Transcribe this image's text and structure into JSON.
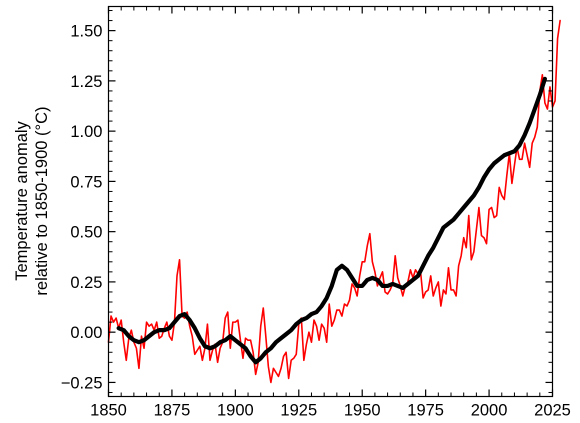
{
  "chart_data": {
    "type": "line",
    "title": "",
    "xlabel": "",
    "ylabel_line1": "Temperature anomaly",
    "ylabel_line2": "relative to 1850-1900 (°C)",
    "xlim": [
      1850,
      2025
    ],
    "ylim": [
      -0.32,
      1.62
    ],
    "x_ticks": [
      1850,
      1875,
      1900,
      1925,
      1950,
      1975,
      2000,
      2025
    ],
    "x_tick_labels": [
      "1850",
      "1875",
      "1900",
      "1925",
      "1950",
      "1975",
      "2000",
      "2025"
    ],
    "y_ticks": [
      -0.25,
      0,
      0.25,
      0.5,
      0.75,
      1.0,
      1.25,
      1.5
    ],
    "y_tick_labels": [
      "−0.25",
      "0.00",
      "0.25",
      "0.50",
      "0.75",
      "1.00",
      "1.25",
      "1.50"
    ],
    "grid": false,
    "legend": "none",
    "series": [
      {
        "kind": "annual",
        "color": "#ff0000",
        "x_start": 1850,
        "x_step": 1,
        "values": [
          -0.05,
          0.08,
          0.05,
          0.07,
          0.02,
          0.06,
          -0.05,
          -0.14,
          -0.03,
          0.01,
          -0.05,
          -0.08,
          -0.18,
          -0.02,
          -0.08,
          0.05,
          0.03,
          0.04,
          0.01,
          0.05,
          -0.03,
          -0.02,
          0.02,
          0.05,
          -0.02,
          -0.04,
          0.05,
          0.28,
          0.36,
          0.08,
          0.07,
          0.1,
          0.03,
          -0.02,
          -0.11,
          -0.09,
          -0.07,
          -0.14,
          -0.08,
          0.04,
          -0.14,
          -0.09,
          -0.06,
          -0.15,
          -0.08,
          -0.05,
          0.07,
          0.1,
          -0.08,
          0.05,
          0.05,
          0.06,
          -0.04,
          -0.13,
          -0.03,
          -0.04,
          -0.04,
          -0.1,
          -0.21,
          -0.15,
          0.03,
          0.12,
          -0.02,
          -0.17,
          -0.25,
          -0.18,
          -0.2,
          -0.22,
          -0.18,
          -0.12,
          -0.1,
          -0.23,
          -0.14,
          -0.13,
          -0.11,
          0.04,
          0.07,
          -0.14,
          -0.06,
          0.0,
          -0.05,
          0.06,
          0.03,
          -0.04,
          0.04,
          0.02,
          -0.05,
          0.14,
          0.03,
          0.06,
          0.11,
          0.11,
          0.08,
          0.14,
          0.13,
          0.16,
          0.24,
          0.22,
          0.18,
          0.28,
          0.35,
          0.35,
          0.43,
          0.49,
          0.35,
          0.3,
          0.23,
          0.27,
          0.3,
          0.2,
          0.19,
          0.21,
          0.24,
          0.38,
          0.27,
          0.23,
          0.18,
          0.23,
          0.25,
          0.31,
          0.27,
          0.31,
          0.29,
          0.3,
          0.17,
          0.2,
          0.21,
          0.28,
          0.18,
          0.22,
          0.25,
          0.13,
          0.21,
          0.19,
          0.32,
          0.21,
          0.21,
          0.18,
          0.33,
          0.38,
          0.47,
          0.42,
          0.58,
          0.36,
          0.4,
          0.51,
          0.62,
          0.48,
          0.47,
          0.44,
          0.61,
          0.62,
          0.57,
          0.58,
          0.72,
          0.68,
          0.66,
          0.78,
          0.89,
          0.74,
          0.83,
          0.92,
          0.86,
          0.86,
          0.94,
          0.88,
          0.82,
          0.94,
          0.97,
          1.02,
          1.2,
          1.28,
          1.14,
          1.11,
          1.22,
          1.12,
          1.15,
          1.46,
          1.55
        ]
      },
      {
        "kind": "smoothed",
        "color": "#000000",
        "x": [
          1854,
          1856,
          1858,
          1860,
          1862,
          1864,
          1866,
          1868,
          1870,
          1872,
          1874,
          1876,
          1878,
          1880,
          1882,
          1884,
          1886,
          1888,
          1890,
          1892,
          1894,
          1896,
          1898,
          1900,
          1902,
          1904,
          1906,
          1908,
          1910,
          1912,
          1914,
          1916,
          1918,
          1920,
          1922,
          1924,
          1926,
          1928,
          1930,
          1932,
          1934,
          1936,
          1938,
          1940,
          1942,
          1944,
          1946,
          1948,
          1950,
          1952,
          1954,
          1956,
          1958,
          1960,
          1962,
          1964,
          1966,
          1968,
          1970,
          1972,
          1974,
          1976,
          1978,
          1980,
          1982,
          1984,
          1986,
          1988,
          1990,
          1992,
          1994,
          1996,
          1998,
          2000,
          2002,
          2004,
          2006,
          2008,
          2010,
          2012,
          2014,
          2016,
          2018,
          2020,
          2022
        ],
        "values": [
          0.02,
          0.01,
          -0.02,
          -0.04,
          -0.05,
          -0.04,
          -0.02,
          0.0,
          0.01,
          0.01,
          0.02,
          0.05,
          0.08,
          0.09,
          0.06,
          0.02,
          -0.03,
          -0.07,
          -0.08,
          -0.07,
          -0.05,
          -0.04,
          -0.02,
          -0.04,
          -0.06,
          -0.08,
          -0.12,
          -0.15,
          -0.13,
          -0.1,
          -0.08,
          -0.05,
          -0.03,
          -0.01,
          0.01,
          0.04,
          0.06,
          0.07,
          0.09,
          0.1,
          0.13,
          0.17,
          0.23,
          0.31,
          0.33,
          0.31,
          0.27,
          0.23,
          0.23,
          0.26,
          0.27,
          0.26,
          0.23,
          0.23,
          0.24,
          0.23,
          0.22,
          0.24,
          0.26,
          0.28,
          0.33,
          0.38,
          0.42,
          0.47,
          0.52,
          0.54,
          0.56,
          0.59,
          0.62,
          0.65,
          0.68,
          0.72,
          0.77,
          0.81,
          0.84,
          0.86,
          0.88,
          0.89,
          0.9,
          0.93,
          0.98,
          1.04,
          1.11,
          1.18,
          1.26
        ]
      }
    ]
  }
}
